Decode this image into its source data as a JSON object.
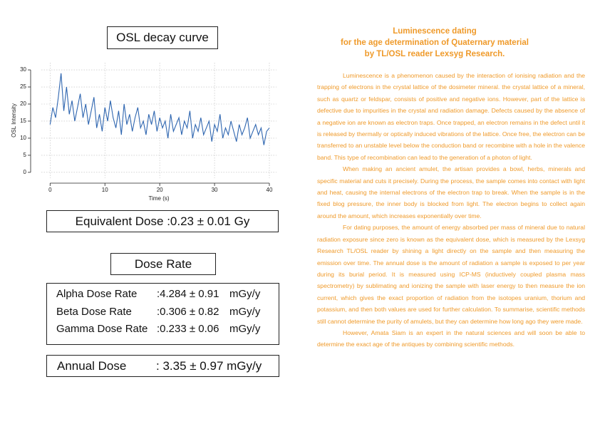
{
  "chart_data": {
    "type": "line",
    "title": "OSL decay curve",
    "x_label": "Time (s)",
    "y_label": "OSL Intensity",
    "color": "#2f66b0",
    "grid": true,
    "x": [
      0,
      0.5,
      1,
      1.5,
      2,
      2.5,
      3,
      3.5,
      4,
      4.5,
      5,
      5.5,
      6,
      6.5,
      7,
      7.5,
      8,
      8.5,
      9,
      9.5,
      10,
      10.5,
      11,
      11.5,
      12,
      12.5,
      13,
      13.5,
      14,
      14.5,
      15,
      15.5,
      16,
      16.5,
      17,
      17.5,
      18,
      18.5,
      19,
      19.5,
      20,
      20.5,
      21,
      21.5,
      22,
      22.5,
      23,
      23.5,
      24,
      24.5,
      25,
      25.5,
      26,
      26.5,
      27,
      27.5,
      28,
      28.5,
      29,
      29.5,
      30,
      30.5,
      31,
      31.5,
      32,
      32.5,
      33,
      33.5,
      34,
      34.5,
      35,
      35.5,
      36,
      36.5,
      37,
      37.5,
      38,
      38.5,
      39,
      39.5,
      40
    ],
    "values": [
      14,
      19,
      16,
      22,
      29,
      18,
      25,
      17,
      21,
      15,
      19,
      23,
      16,
      20,
      14,
      18,
      22,
      13,
      17,
      12,
      19,
      15,
      21,
      16,
      13,
      18,
      11,
      20,
      14,
      17,
      12,
      16,
      19,
      13,
      15,
      11,
      17,
      14,
      18,
      12,
      16,
      13,
      15,
      10,
      17,
      12,
      14,
      16,
      11,
      15,
      13,
      18,
      10,
      14,
      12,
      16,
      11,
      13,
      15,
      9,
      14,
      12,
      17,
      10,
      13,
      11,
      15,
      12,
      9,
      14,
      11,
      13,
      16,
      10,
      12,
      14,
      11,
      13,
      8,
      12,
      13
    ],
    "xlim": [
      -1.6,
      41.3
    ],
    "ylim": [
      -1.7,
      32.1
    ],
    "xticks": [
      0,
      10,
      20,
      30,
      40
    ],
    "yticks": [
      0,
      5,
      10,
      15,
      20,
      25,
      30
    ]
  },
  "doses": {
    "equivalent": {
      "label": "Equivalent Dose",
      "value": ":0.23 ± 0.01 Gy"
    },
    "dose_rate_title": "Dose Rate",
    "rates": [
      [
        "Alpha Dose Rate",
        ":4.284 ± 0.91",
        "mGy/y"
      ],
      [
        "Beta Dose Rate",
        ":0.306 ± 0.82",
        "mGy/y"
      ],
      [
        "Gamma Dose Rate",
        ":0.233 ± 0.06",
        "mGy/y"
      ]
    ],
    "annual": {
      "label": "Annual Dose",
      "value": ": 3.35 ± 0.97 mGy/y"
    }
  },
  "article": {
    "heading": [
      "Luminescence dating",
      "for the age determination of Quaternary material",
      "by TL/OSL reader Lexsyg Research."
    ],
    "paragraphs": [
      "Luminescence is a phenomenon caused by the interaction of ionising radiation and the trapping of electrons in the crystal lattice of the dosimeter mineral. the crystal lattice of a mineral, such as quartz or feldspar, consists of positive and negative ions. However, part of the lattice is defective due to impurities in the crystal and radiation damage. Defects caused by the absence of a negative ion are known as electron traps. Once trapped, an electron remains in the defect until it is released by thermally or optically induced vibrations of the lattice. Once free, the electron can be transferred to an unstable level below the conduction band or recombine with a hole in the valence band. This type of recombination can lead to the generation of a photon of light.",
      "When making an ancient amulet, the artisan provides a bowl, herbs, minerals and specific material and cuts it precisely. During the process, the sample comes into contact with light and heat, causing the internal electrons of the electron trap to break. When the sample is in the fixed blog pressure, the inner body is blocked from light. The electron begins to collect again around the amount, which increases exponentially over time.",
      "For dating purposes, the amount of energy absorbed per mass of mineral due to natural radiation exposure since zero is known as the equivalent dose, which is measured by the Lexsyg Research TL/OSL reader by shining a light directly on the sample and then measuring the emission over time. The annual dose is the amount of radiation a sample is exposed to per year during its burial period. It is measured using ICP-MS (inductively coupled plasma mass spectrometry) by sublimating and ionizing the sample with laser energy to then measure the ion current, which gives the exact proportion of radiation from the isotopes uranium, thorium and potassium, and then both values are used for further calculation. To summarise, scientific methods still cannot determine the purity of amulets, but they can determine how long ago they were made.",
      "However, Amata Siam is an expert in the natural sciences and will soon be able to determine the exact age of the antiques by combining scientific methods."
    ]
  }
}
